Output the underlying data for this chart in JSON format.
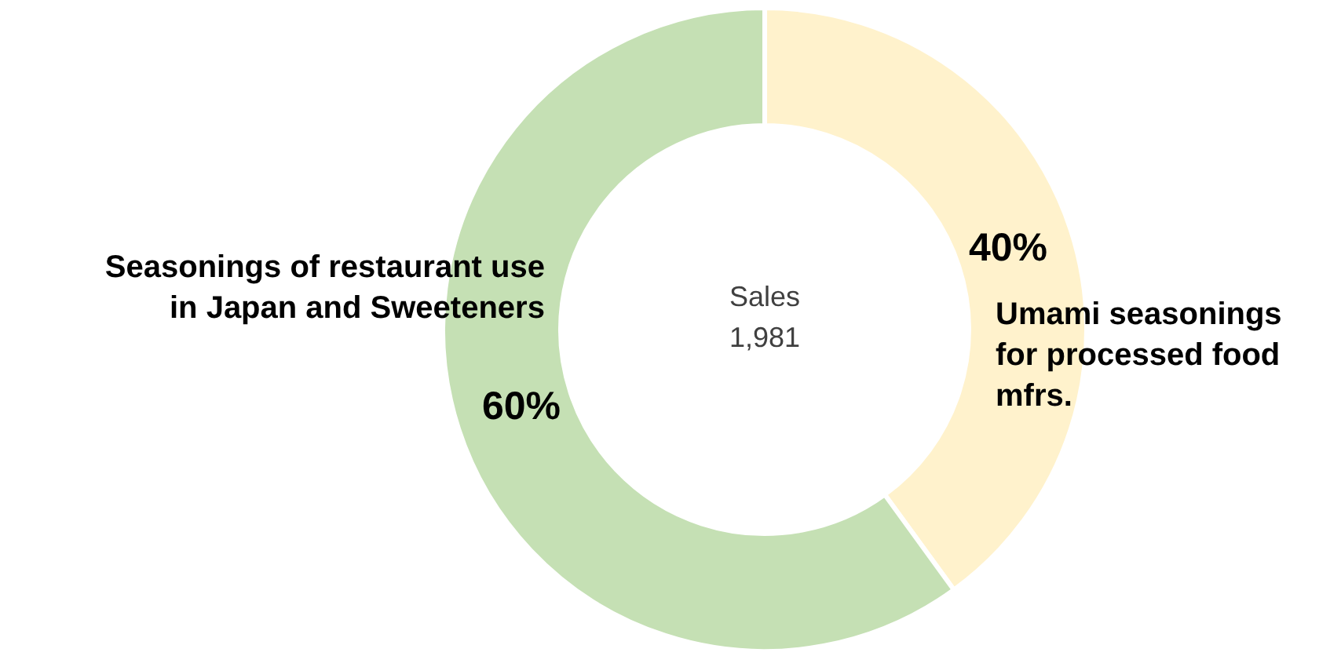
{
  "chart_data": {
    "type": "donut",
    "categories": [
      "Umami seasonings for processed food mfrs.",
      "Seasonings of restaurant use in Japan and Sweeteners"
    ],
    "values": [
      40,
      60
    ],
    "colors": [
      "#fff2cc",
      "#c5e0b4"
    ],
    "value_labels": [
      "40%",
      "60%"
    ],
    "annotations": [
      "Sales",
      "1,981"
    ],
    "legend": false
  }
}
